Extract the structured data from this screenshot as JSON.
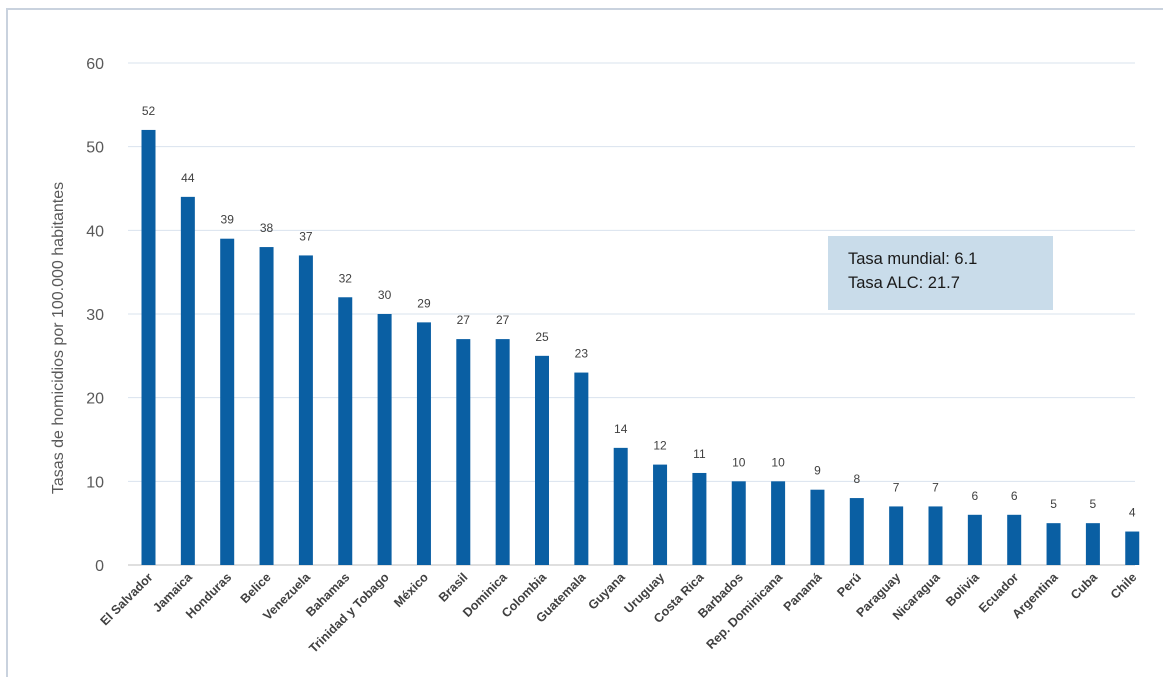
{
  "chart_data": {
    "type": "bar",
    "title": "",
    "xlabel": "",
    "ylabel": "Tasas de homicidios por 100.000 habitantes",
    "ylim": [
      0,
      60
    ],
    "yticks": [
      0,
      10,
      20,
      30,
      40,
      50,
      60
    ],
    "grid": true,
    "bar_color": "#0a5fa3",
    "categories": [
      "El Salvador",
      "Jamaica",
      "Honduras",
      "Belice",
      "Venezuela",
      "Bahamas",
      "Trinidad y Tobago",
      "México",
      "Brasil",
      "Dominica",
      "Colombia",
      "Guatemala",
      "Guyana",
      "Uruguay",
      "Costa Rica",
      "Barbados",
      "Rep. Dominicana",
      "Panamá",
      "Perú",
      "Paraguay",
      "Nicaragua",
      "Bolivia",
      "Ecuador",
      "Argentina",
      "Cuba",
      "Chile"
    ],
    "values": [
      52,
      44,
      39,
      38,
      37,
      32,
      30,
      29,
      27,
      27,
      25,
      23,
      14,
      12,
      11,
      10,
      10,
      9,
      8,
      7,
      7,
      6,
      6,
      5,
      5,
      4
    ],
    "annotation": {
      "line1": "Tasa mundial: 6.1",
      "line2": "Tasa ALC: 21.7"
    }
  }
}
